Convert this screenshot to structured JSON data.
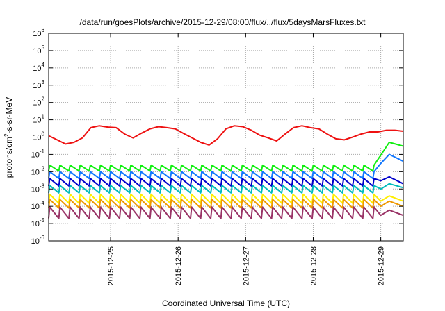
{
  "chart_data": {
    "type": "line",
    "title": "/data/run/goesPlots/archive/2015-12-29/08:00/flux/../flux/5daysMarsFluxes.txt",
    "xlabel": "Coordinated Universal Time (UTC)",
    "ylabel": {
      "prefix": "protons/cm",
      "sup": "2",
      "suffix": "-s-sr-MeV"
    },
    "scale_y": "log",
    "grid": true,
    "legend": "none",
    "xlim": [
      "2015-12-24 02:00",
      "2015-12-29 08:00"
    ],
    "x_ticks": [
      "2015-12-25",
      "2015-12-26",
      "2015-12-27",
      "2015-12-28",
      "2015-12-29"
    ],
    "ylim_exponents": [
      -6,
      6
    ],
    "y_ticks": [
      {
        "base": "10",
        "exp": "-6"
      },
      {
        "base": "10",
        "exp": "-5"
      },
      {
        "base": "10",
        "exp": "-4"
      },
      {
        "base": "10",
        "exp": "-3"
      },
      {
        "base": "10",
        "exp": "-2"
      },
      {
        "base": "10",
        "exp": "-1"
      },
      {
        "base": "10",
        "exp": "0"
      },
      {
        "base": "10",
        "exp": "1"
      },
      {
        "base": "10",
        "exp": "2"
      },
      {
        "base": "10",
        "exp": "3"
      },
      {
        "base": "10",
        "exp": "4"
      },
      {
        "base": "10",
        "exp": "5"
      },
      {
        "base": "10",
        "exp": "6"
      }
    ],
    "series": [
      {
        "color": "#ee1111",
        "width": 2,
        "x": [
          "2015-12-24 02:00",
          "2015-12-24 05:00",
          "2015-12-24 08:00",
          "2015-12-24 11:00",
          "2015-12-24 14:00",
          "2015-12-24 17:00",
          "2015-12-24 20:00",
          "2015-12-24 23:00",
          "2015-12-25 02:00",
          "2015-12-25 05:00",
          "2015-12-25 08:00",
          "2015-12-25 11:00",
          "2015-12-25 14:00",
          "2015-12-25 17:00",
          "2015-12-25 20:00",
          "2015-12-25 23:00",
          "2015-12-26 02:00",
          "2015-12-26 05:00",
          "2015-12-26 08:00",
          "2015-12-26 11:00",
          "2015-12-26 14:00",
          "2015-12-26 17:00",
          "2015-12-26 20:00",
          "2015-12-26 23:00",
          "2015-12-27 02:00",
          "2015-12-27 05:00",
          "2015-12-27 08:00",
          "2015-12-27 11:00",
          "2015-12-27 14:00",
          "2015-12-27 17:00",
          "2015-12-27 20:00",
          "2015-12-27 23:00",
          "2015-12-28 02:00",
          "2015-12-28 05:00",
          "2015-12-28 08:00",
          "2015-12-28 11:00",
          "2015-12-28 14:00",
          "2015-12-28 17:00",
          "2015-12-28 20:00",
          "2015-12-28 23:00",
          "2015-12-29 02:00",
          "2015-12-29 05:00",
          "2015-12-29 08:00"
        ],
        "y": [
          1.2,
          0.7,
          0.4,
          0.5,
          0.9,
          3.5,
          4.5,
          3.8,
          3.5,
          1.5,
          0.9,
          1.7,
          3.0,
          4.0,
          3.5,
          3.0,
          1.6,
          0.9,
          0.5,
          0.35,
          0.8,
          3.0,
          4.5,
          4.0,
          2.5,
          1.3,
          0.9,
          0.6,
          1.5,
          3.5,
          4.5,
          3.5,
          3.0,
          1.5,
          0.8,
          0.7,
          1.0,
          1.5,
          2.0,
          2.0,
          2.5,
          2.5,
          2.2
        ]
      },
      {
        "color": "#11ee11",
        "width": 2,
        "sawtooth": {
          "base": 0.011,
          "peak": 0.024
        },
        "end": [
          0.09,
          0.5,
          0.3
        ]
      },
      {
        "color": "#1177ff",
        "width": 2,
        "sawtooth": {
          "base": 0.004,
          "peak": 0.01
        },
        "end": [
          0.03,
          0.1,
          0.04
        ]
      },
      {
        "color": "#0000cc",
        "width": 2,
        "sawtooth": {
          "base": 0.0015,
          "peak": 0.004
        },
        "end": [
          0.003,
          0.005,
          0.002
        ]
      },
      {
        "color": "#00bbbb",
        "width": 2,
        "sawtooth": {
          "base": 0.0006,
          "peak": 0.0016
        },
        "end": [
          0.001,
          0.002,
          0.0012
        ]
      },
      {
        "color": "#ffee00",
        "width": 2,
        "sawtooth": {
          "base": 0.00015,
          "peak": 0.0005
        },
        "end": [
          0.0002,
          0.0004,
          0.0002
        ]
      },
      {
        "color": "#ee9900",
        "width": 2,
        "sawtooth": {
          "base": 8e-05,
          "peak": 0.00025
        },
        "end": [
          0.0001,
          0.0002,
          0.0001
        ]
      },
      {
        "color": "#993366",
        "width": 2,
        "sawtooth": {
          "base": 2e-05,
          "peak": 9e-05
        },
        "end": [
          3e-05,
          6e-05,
          3e-05
        ]
      }
    ]
  }
}
